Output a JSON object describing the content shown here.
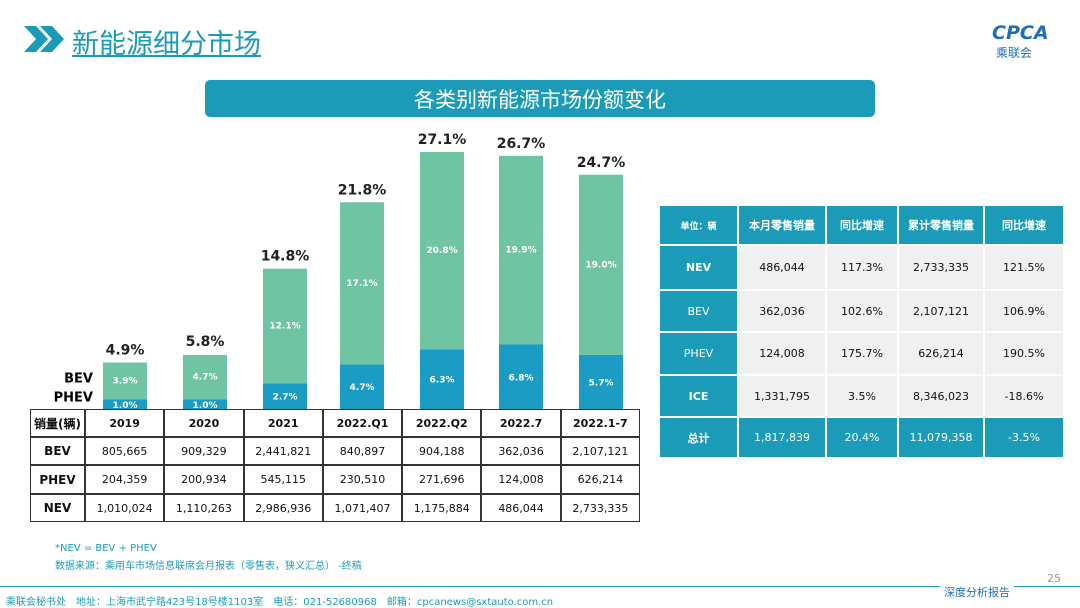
{
  "header": {
    "title": "新能源细分市场",
    "logo_text": "CPCA",
    "logo_subtext": "乘联会"
  },
  "chart_data": {
    "type": "stacked_bar",
    "title": "各类别新能源市场份额变化",
    "categories": [
      "2019",
      "2020",
      "2021",
      "2022.Q1",
      "2022.Q2",
      "2022.7",
      "2022.1-7"
    ],
    "series": [
      {
        "name": "PHEV",
        "color": "#1a9cc4",
        "values": [
          1.0,
          1.0,
          2.7,
          4.7,
          6.3,
          6.8,
          5.7
        ],
        "value_labels": [
          "1.0%",
          "1.0%",
          "2.7%",
          "4.7%",
          "6.3%",
          "6.8%",
          "5.7%"
        ]
      },
      {
        "name": "BEV",
        "color": "#6fc4a3",
        "values": [
          3.9,
          4.7,
          12.1,
          17.1,
          20.8,
          19.9,
          19.0
        ],
        "value_labels": [
          "3.9%",
          "4.7%",
          "12.1%",
          "17.1%",
          "20.8%",
          "19.9%",
          "19.0%"
        ]
      }
    ],
    "totals": [
      4.9,
      5.8,
      14.8,
      21.8,
      27.1,
      26.7,
      24.7
    ],
    "total_labels": [
      "4.9%",
      "5.8%",
      "14.8%",
      "21.8%",
      "27.1%",
      "26.7%",
      "24.7%"
    ]
  },
  "sales_table": {
    "header": [
      "销量(辆)",
      "2019",
      "2020",
      "2021",
      "2022.Q1",
      "2022.Q2",
      "2022.7",
      "2022.1-7"
    ],
    "rows": [
      [
        "BEV",
        "805,665",
        "909,329",
        "2,441,821",
        "840,897",
        "904,188",
        "362,036",
        "2,107,121"
      ],
      [
        "PHEV",
        "204,359",
        "200,934",
        "545,115",
        "230,510",
        "271,696",
        "124,008",
        "626,214"
      ],
      [
        "NEV",
        "1,010,024",
        "1,110,263",
        "2,986,936",
        "1,071,407",
        "1,175,884",
        "486,044",
        "2,733,335"
      ]
    ]
  },
  "retail_table": {
    "header": [
      "单位：辆",
      "本月零售销量",
      "同比增速",
      "累计零售销量",
      "同比增速"
    ],
    "rows": [
      [
        "NEV",
        "486,044",
        "117.3%",
        "2,733,335",
        "121.5%"
      ],
      [
        "BEV",
        "362,036",
        "102.6%",
        "2,107,121",
        "106.9%"
      ],
      [
        "PHEV",
        "124,008",
        "175.7%",
        "626,214",
        "190.5%"
      ],
      [
        "ICE",
        "1,331,795",
        "3.5%",
        "8,346,023",
        "-18.6%"
      ],
      [
        "总计",
        "1,817,839",
        "20.4%",
        "11,079,358",
        "-3.5%"
      ]
    ]
  },
  "notes": [
    "*NEV = BEV + PHEV",
    "数据来源：乘用车市场信息联席会月报表（零售表，狭义汇总）   -终稿"
  ],
  "footer": {
    "contact": "乘联会秘书处　地址：上海市武宁路423号18号楼1103室　电话：021-52680968　邮箱：cpcanews@sxtauto.com.cn",
    "report": "深度分析报告",
    "page": "25"
  }
}
